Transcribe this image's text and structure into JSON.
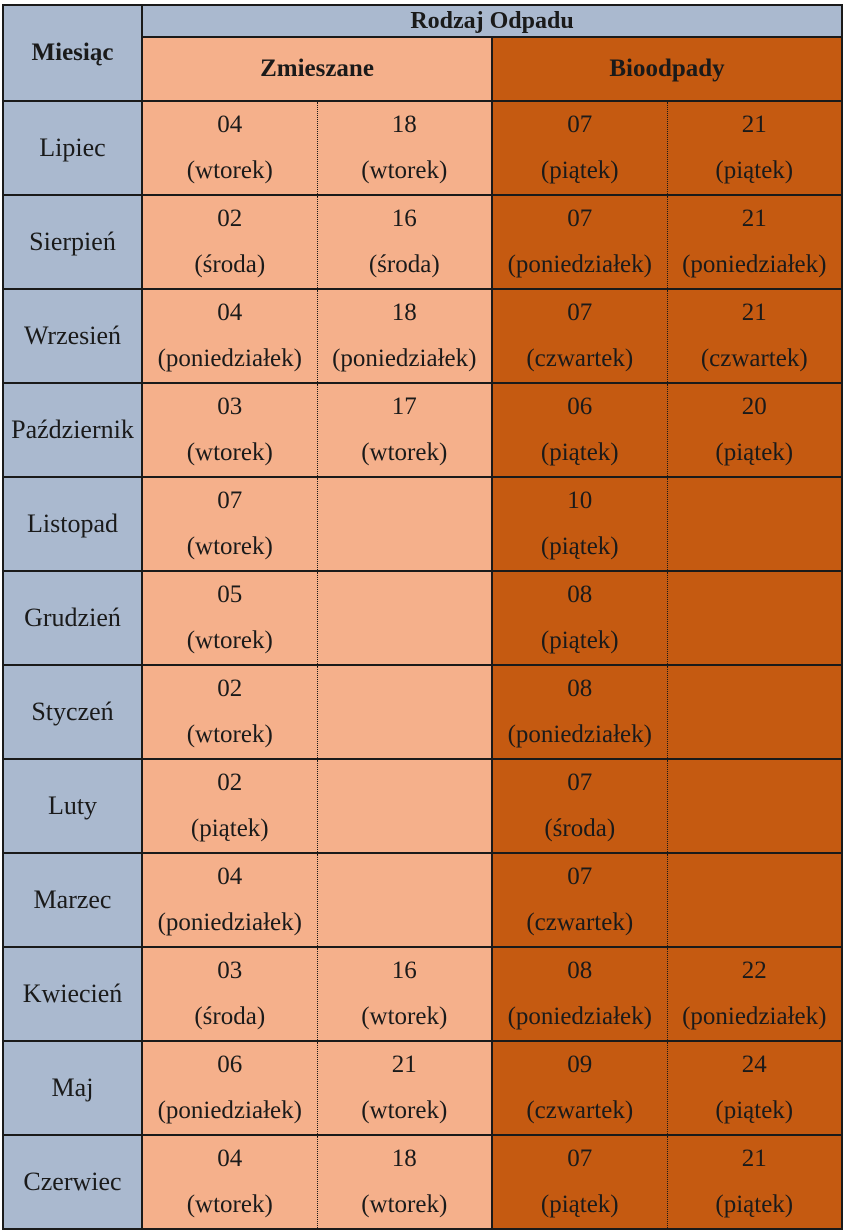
{
  "header": {
    "waste_type": "Rodzaj Odpadu",
    "month": "Miesiąc",
    "mixed": "Zmieszane",
    "bio": "Bioodpady"
  },
  "rows": [
    {
      "month": "Lipiec",
      "m1": [
        "04",
        "(wtorek)"
      ],
      "m2": [
        "18",
        "(wtorek)"
      ],
      "b1": [
        "07",
        "(piątek)"
      ],
      "b2": [
        "21",
        "(piątek)"
      ]
    },
    {
      "month": "Sierpień",
      "m1": [
        "02",
        "(środa)"
      ],
      "m2": [
        "16",
        "(środa)"
      ],
      "b1": [
        "07",
        "(poniedziałek)"
      ],
      "b2": [
        "21",
        "(poniedziałek)"
      ]
    },
    {
      "month": "Wrzesień",
      "m1": [
        "04",
        "(poniedziałek)"
      ],
      "m2": [
        "18",
        "(poniedziałek)"
      ],
      "b1": [
        "07",
        "(czwartek)"
      ],
      "b2": [
        "21",
        "(czwartek)"
      ]
    },
    {
      "month": "Październik",
      "m1": [
        "03",
        "(wtorek)"
      ],
      "m2": [
        "17",
        "(wtorek)"
      ],
      "b1": [
        "06",
        "(piątek)"
      ],
      "b2": [
        "20",
        "(piątek)"
      ]
    },
    {
      "month": "Listopad",
      "m1": [
        "07",
        "(wtorek)"
      ],
      "m2": [
        "",
        ""
      ],
      "b1": [
        "10",
        "(piątek)"
      ],
      "b2": [
        "",
        ""
      ]
    },
    {
      "month": "Grudzień",
      "m1": [
        "05",
        "(wtorek)"
      ],
      "m2": [
        "",
        ""
      ],
      "b1": [
        "08",
        "(piątek)"
      ],
      "b2": [
        "",
        ""
      ]
    },
    {
      "month": "Styczeń",
      "m1": [
        "02",
        "(wtorek)"
      ],
      "m2": [
        "",
        ""
      ],
      "b1": [
        "08",
        "(poniedziałek)"
      ],
      "b2": [
        "",
        ""
      ]
    },
    {
      "month": "Luty",
      "m1": [
        "02",
        "(piątek)"
      ],
      "m2": [
        "",
        ""
      ],
      "b1": [
        "07",
        "(środa)"
      ],
      "b2": [
        "",
        ""
      ]
    },
    {
      "month": "Marzec",
      "m1": [
        "04",
        "(poniedziałek)"
      ],
      "m2": [
        "",
        ""
      ],
      "b1": [
        "07",
        "(czwartek)"
      ],
      "b2": [
        "",
        ""
      ]
    },
    {
      "month": "Kwiecień",
      "m1": [
        "03",
        "(środa)"
      ],
      "m2": [
        "16",
        "(wtorek)"
      ],
      "b1": [
        "08",
        "(poniedziałek)"
      ],
      "b2": [
        "22",
        "(poniedziałek)"
      ]
    },
    {
      "month": "Maj",
      "m1": [
        "06",
        "(poniedziałek)"
      ],
      "m2": [
        "21",
        "(wtorek)"
      ],
      "b1": [
        "09",
        "(czwartek)"
      ],
      "b2": [
        "24",
        "(piątek)"
      ]
    },
    {
      "month": "Czerwiec",
      "m1": [
        "04",
        "(wtorek)"
      ],
      "m2": [
        "18",
        "(wtorek)"
      ],
      "b1": [
        "07",
        "(piątek)"
      ],
      "b2": [
        "21",
        "(piątek)"
      ]
    }
  ]
}
